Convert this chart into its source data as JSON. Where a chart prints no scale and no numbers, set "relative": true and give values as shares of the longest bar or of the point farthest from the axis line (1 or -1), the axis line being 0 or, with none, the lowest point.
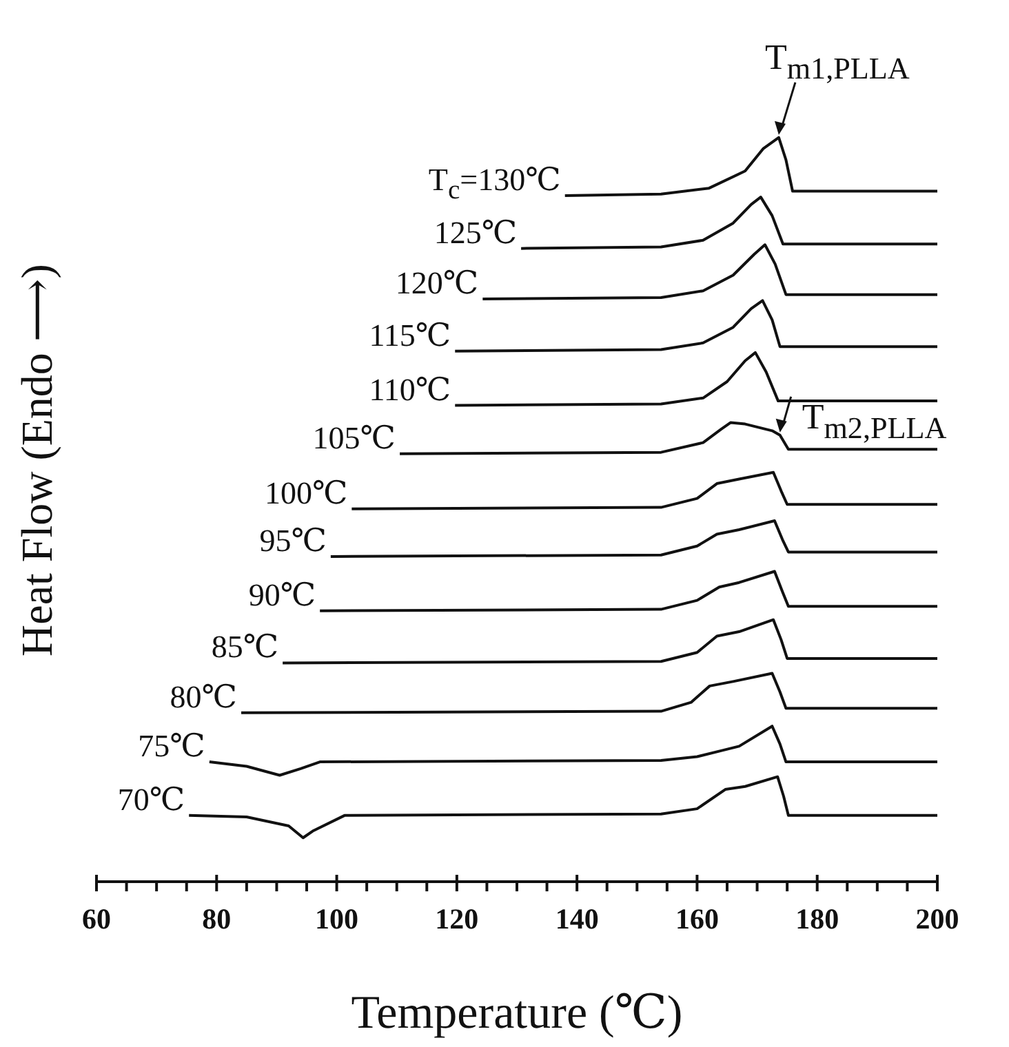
{
  "chart_data": {
    "type": "line",
    "relative": true,
    "xlabel": "Temperature (℃)",
    "ylabel": "Heat Flow (Endo ⟶)",
    "xlim": [
      60,
      200
    ],
    "xticks": [
      60,
      {
        "value": 65,
        "label": null
      },
      {
        "value": 70,
        "label": null
      },
      {
        "value": 75,
        "label": null
      },
      80,
      {
        "value": 85,
        "label": null
      },
      {
        "value": 90,
        "label": null
      },
      {
        "value": 95,
        "label": null
      },
      100,
      {
        "value": 105,
        "label": null
      },
      {
        "value": 110,
        "label": null
      },
      {
        "value": 115,
        "label": null
      },
      120,
      {
        "value": 125,
        "label": null
      },
      {
        "value": 130,
        "label": null
      },
      {
        "value": 135,
        "label": null
      },
      140,
      {
        "value": 145,
        "label": null
      },
      {
        "value": 150,
        "label": null
      },
      {
        "value": 155,
        "label": null
      },
      160,
      {
        "value": 165,
        "label": null
      },
      {
        "value": 170,
        "label": null
      },
      {
        "value": 175,
        "label": null
      },
      180,
      {
        "value": 185,
        "label": null
      },
      {
        "value": 190,
        "label": null
      },
      {
        "value": 195,
        "label": null
      },
      200
    ],
    "series": [
      {
        "name": "T$_{c}$=130℃",
        "color": "#111111",
        "x": [
          138.0,
          154,
          162,
          168,
          171,
          173.6,
          174.8,
          175.9,
          200
        ],
        "values": [
          0.922,
          0.924,
          0.932,
          0.955,
          0.985,
          1.0,
          0.97,
          0.928,
          0.928
        ]
      },
      {
        "name": "125℃",
        "color": "#111111",
        "x": [
          130.7,
          154,
          161,
          166,
          169,
          170.6,
          172.5,
          174.3,
          200
        ],
        "values": [
          0.851,
          0.853,
          0.862,
          0.885,
          0.91,
          0.92,
          0.895,
          0.857,
          0.857
        ]
      },
      {
        "name": "120℃",
        "color": "#111111",
        "x": [
          124.3,
          154,
          161,
          166,
          169.5,
          171.3,
          173,
          174.8,
          200
        ],
        "values": [
          0.783,
          0.785,
          0.794,
          0.815,
          0.843,
          0.856,
          0.83,
          0.789,
          0.789
        ]
      },
      {
        "name": "115℃",
        "color": "#111111",
        "x": [
          119.7,
          154,
          161,
          166,
          169,
          170.9,
          172.5,
          173.8,
          200
        ],
        "values": [
          0.713,
          0.715,
          0.724,
          0.745,
          0.77,
          0.781,
          0.755,
          0.719,
          0.719
        ]
      },
      {
        "name": "110℃",
        "color": "#111111",
        "x": [
          119.7,
          154,
          161,
          165,
          168,
          169.7,
          171.5,
          173.5,
          200
        ],
        "values": [
          0.64,
          0.642,
          0.65,
          0.672,
          0.7,
          0.711,
          0.685,
          0.646,
          0.646
        ]
      },
      {
        "name": "105℃",
        "color": "#111111",
        "x": [
          110.5,
          154,
          161,
          164,
          165.6,
          168,
          172.5,
          173.8,
          175.2,
          200
        ],
        "values": [
          0.575,
          0.577,
          0.59,
          0.608,
          0.617,
          0.615,
          0.606,
          0.6,
          0.581,
          0.581
        ]
      },
      {
        "name": "100℃",
        "color": "#111111",
        "x": [
          102.5,
          154,
          160,
          163.3,
          167,
          172.7,
          174,
          175,
          200
        ],
        "values": [
          0.501,
          0.503,
          0.515,
          0.535,
          0.541,
          0.55,
          0.525,
          0.507,
          0.507
        ]
      },
      {
        "name": "95℃",
        "color": "#111111",
        "x": [
          99.0,
          154,
          160,
          163.3,
          167,
          172.9,
          174.2,
          175.2,
          200
        ],
        "values": [
          0.437,
          0.439,
          0.451,
          0.467,
          0.473,
          0.485,
          0.46,
          0.443,
          0.443
        ]
      },
      {
        "name": "90℃",
        "color": "#111111",
        "x": [
          97.2,
          154,
          160,
          163.7,
          167,
          172.9,
          174.2,
          175.2,
          200
        ],
        "values": [
          0.364,
          0.366,
          0.378,
          0.396,
          0.402,
          0.417,
          0.39,
          0.37,
          0.37
        ]
      },
      {
        "name": "85℃",
        "color": "#111111",
        "x": [
          91.0,
          154,
          160,
          163.3,
          167,
          172.7,
          174,
          175,
          200
        ],
        "values": [
          0.294,
          0.296,
          0.308,
          0.33,
          0.336,
          0.352,
          0.325,
          0.3,
          0.3
        ]
      },
      {
        "name": "80℃",
        "color": "#111111",
        "x": [
          84.1,
          154,
          159,
          162.1,
          166,
          172.5,
          173.8,
          174.8,
          200
        ],
        "values": [
          0.227,
          0.229,
          0.241,
          0.263,
          0.269,
          0.28,
          0.255,
          0.233,
          0.233
        ]
      },
      {
        "name": "75℃",
        "color": "#111111",
        "x": [
          78.8,
          85,
          90.5,
          94,
          97.2,
          154,
          160,
          164,
          167,
          172.5,
          173.8,
          174.8,
          200
        ],
        "values": [
          0.161,
          0.155,
          0.143,
          0.152,
          0.161,
          0.163,
          0.168,
          0.176,
          0.182,
          0.209,
          0.185,
          0.161,
          0.161
        ]
      },
      {
        "name": "70℃",
        "color": "#111111",
        "x": [
          75.4,
          85,
          92,
          94.4,
          96,
          101.3,
          154,
          160,
          164.7,
          168,
          173.4,
          174.4,
          175.2,
          200
        ],
        "values": [
          0.089,
          0.087,
          0.075,
          0.059,
          0.068,
          0.089,
          0.091,
          0.098,
          0.124,
          0.128,
          0.141,
          0.115,
          0.089,
          0.089
        ]
      }
    ],
    "annotations": [
      {
        "text": "T$_{m1,PLLA}$",
        "x": 173.6,
        "y": 1.0
      },
      {
        "text": "T$_{m2,PLLA}$",
        "x": 173.8,
        "y": 0.6
      }
    ]
  }
}
